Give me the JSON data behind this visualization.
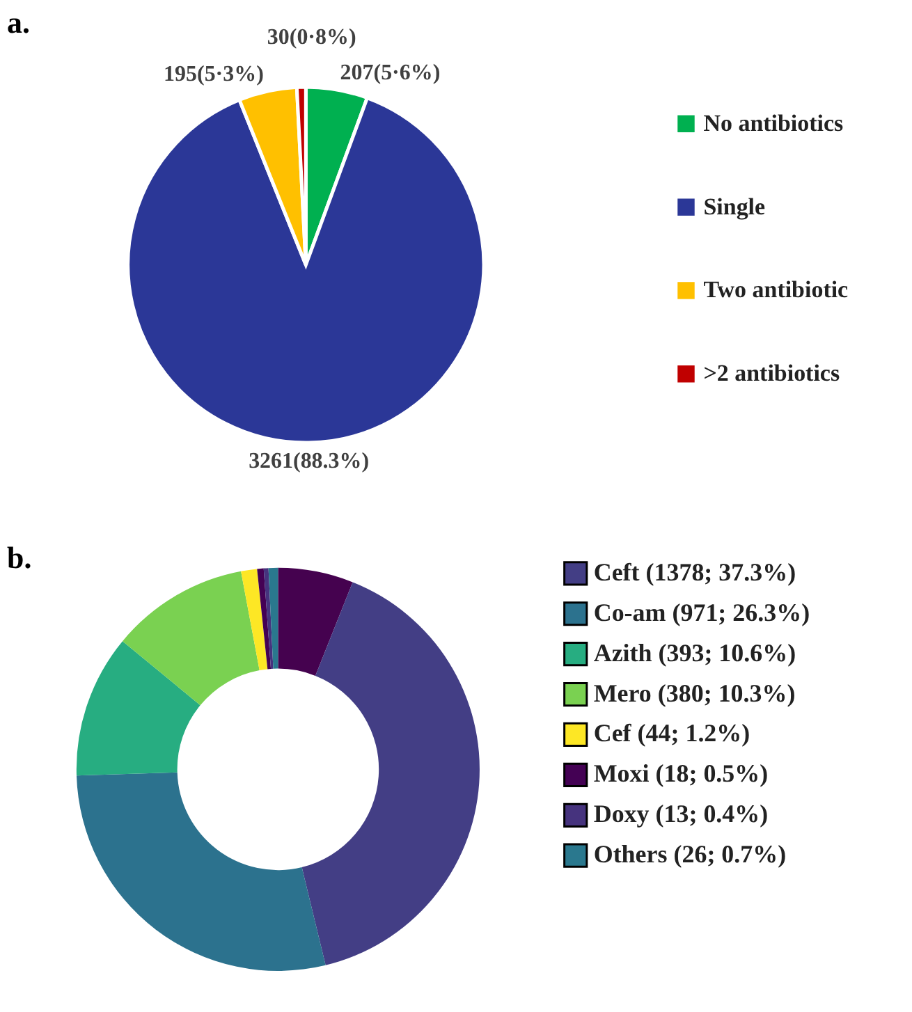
{
  "chart_data": [
    {
      "type": "pie",
      "title": "a.",
      "categories": [
        "No antibiotics",
        "Single",
        "Two antibiotic",
        ">2 antibiotics"
      ],
      "values": [
        207,
        3261,
        195,
        30
      ],
      "colors": [
        "#00b050",
        "#2b3797",
        "#ffc000",
        "#c00000"
      ],
      "value_labels": [
        "207(5·6%)",
        "3261(88.3%)",
        "195(5·3%)",
        "30(0·8%)"
      ],
      "legend": "right"
    },
    {
      "type": "donut",
      "title": "b.",
      "categories": [
        null,
        "Ceft (1378; 37.3%)",
        "Co-am (971; 26.3%)",
        "Azith (393; 10.6%)",
        "Mero (380; 10.3%)",
        "Cef (44; 1.2%)",
        "Moxi (18; 0.5%)",
        "Doxy (13; 0.4%)",
        "Others (26; 0.7%)"
      ],
      "values": [
        207,
        1378,
        971,
        393,
        380,
        44,
        18,
        13,
        26
      ],
      "colors": [
        "#45024f",
        "#433e85",
        "#2c728e",
        "#27ad81",
        "#7ad151",
        "#fde725",
        "#440154",
        "#46337e",
        "#2a788e"
      ],
      "legend": "right"
    }
  ]
}
